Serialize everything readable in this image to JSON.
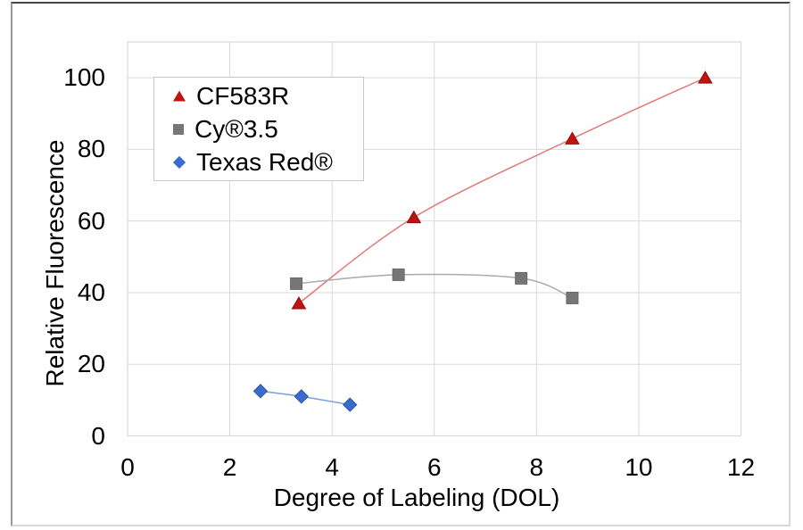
{
  "chart_data": {
    "type": "scatter",
    "title": "",
    "xlabel": "Degree of Labeling (DOL)",
    "ylabel": "Relative Fluorescence",
    "xlim": [
      0,
      12
    ],
    "ylim": [
      0,
      110
    ],
    "x_ticks": [
      0,
      2,
      4,
      6,
      8,
      10,
      12
    ],
    "y_ticks": [
      0,
      20,
      40,
      60,
      80,
      100
    ],
    "grid": true,
    "grid_color": "#d9d9d9",
    "legend_position": "top-left-inside",
    "series": [
      {
        "name": "CF583R",
        "marker": "triangle",
        "color": "#bf1312",
        "edge_color": "#8e0e0e",
        "line_color": "#e07a7a",
        "smooth": true,
        "points": [
          [
            3.35,
            37
          ],
          [
            5.6,
            61
          ],
          [
            8.7,
            83
          ],
          [
            11.3,
            100
          ]
        ]
      },
      {
        "name": "Cy®3.5",
        "marker": "square",
        "color": "#767676",
        "edge_color": "#6a6a6a",
        "line_color": "#ababab",
        "smooth": true,
        "points": [
          [
            3.3,
            42.5
          ],
          [
            5.3,
            45
          ],
          [
            7.7,
            44
          ],
          [
            8.7,
            38.5
          ]
        ]
      },
      {
        "name": "Texas Red®",
        "marker": "diamond",
        "color": "#3a6cd0",
        "edge_color": "#2d55a5",
        "line_color": "#7ba0dc",
        "smooth": true,
        "points": [
          [
            2.6,
            12.5
          ],
          [
            3.4,
            11
          ],
          [
            4.35,
            8.7
          ]
        ]
      }
    ]
  }
}
